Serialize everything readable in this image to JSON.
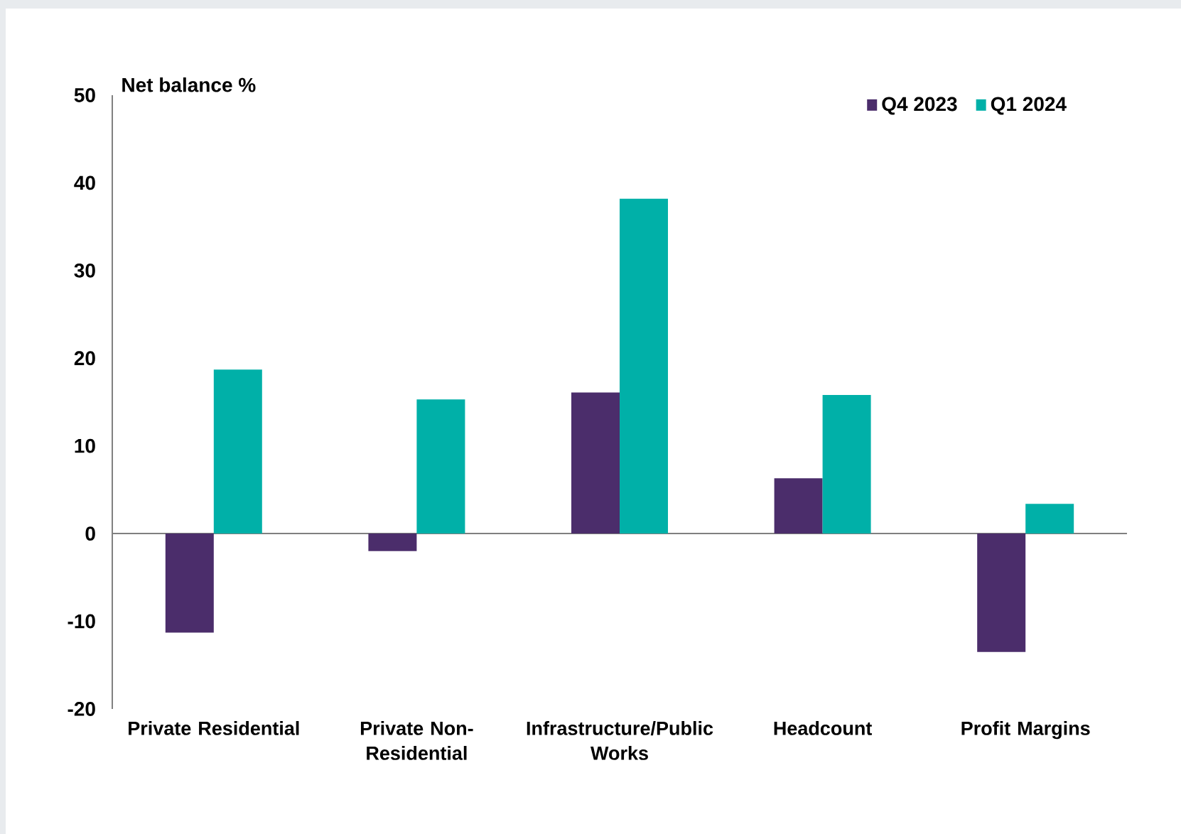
{
  "chart_data": {
    "type": "bar",
    "ylabel": "Net balance %",
    "categories": [
      "Private Residential",
      "Private Non-Residential",
      "Infrastructure/Public Works",
      "Headcount",
      "Profit Margins"
    ],
    "series": [
      {
        "name": "Q4 2023",
        "color": "#4b2d6b",
        "values": [
          -11.3,
          -2.0,
          16.1,
          6.3,
          -13.5
        ]
      },
      {
        "name": "Q1 2024",
        "color": "#00b0a8",
        "values": [
          18.7,
          15.3,
          38.2,
          15.8,
          3.4
        ]
      }
    ],
    "ylim": [
      -20,
      50
    ],
    "yticks": [
      -20,
      -10,
      0,
      10,
      20,
      30,
      40,
      50
    ],
    "legend": "top right"
  }
}
